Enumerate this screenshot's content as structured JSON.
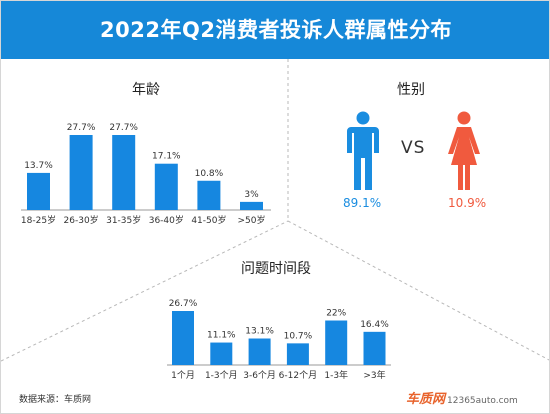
{
  "header": {
    "title": "2022年Q2消费者投诉人群属性分布"
  },
  "source": "数据来源：车质网",
  "logo": {
    "name": "车质网",
    "url": "12365auto.com"
  },
  "colors": {
    "banner": "#1688d8",
    "bar": "#1687e0",
    "male": "#1a8de0",
    "female": "#f05a3e",
    "divider": "#b8b8b8"
  },
  "gender": {
    "title": "性别",
    "vs_label": "VS",
    "male": {
      "icon": "male-figure-icon",
      "label": "89.1%"
    },
    "female": {
      "icon": "female-figure-icon",
      "label": "10.9%"
    }
  },
  "chart_data": [
    {
      "type": "bar",
      "title": "年龄",
      "categories": [
        "18-25岁",
        "26-30岁",
        "31-35岁",
        "36-40岁",
        "41-50岁",
        ">50岁"
      ],
      "values": [
        13.7,
        27.7,
        27.7,
        17.1,
        10.8,
        3
      ],
      "labels": [
        "13.7%",
        "27.7%",
        "27.7%",
        "17.1%",
        "10.8%",
        "3%"
      ],
      "ylim": [
        0,
        27.7
      ],
      "grid": false
    },
    {
      "type": "bar",
      "title": "问题时间段",
      "categories": [
        "1个月",
        "1-3个月",
        "3-6个月",
        "6-12个月",
        "1-3年",
        ">3年"
      ],
      "values": [
        26.7,
        11.1,
        13.1,
        10.7,
        22,
        16.4
      ],
      "labels": [
        "26.7%",
        "11.1%",
        "13.1%",
        "10.7%",
        "22%",
        "16.4%"
      ],
      "ylim": [
        0,
        26.7
      ],
      "grid": false
    }
  ]
}
